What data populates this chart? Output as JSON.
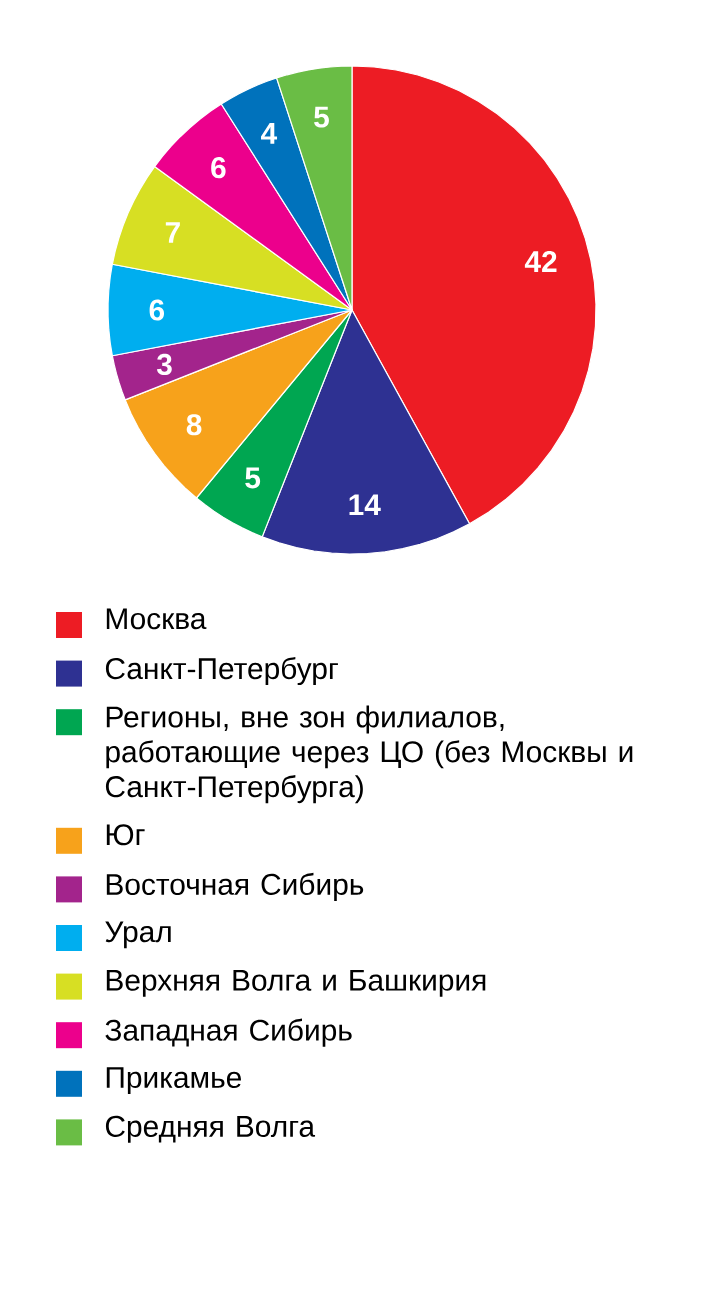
{
  "chart_data": {
    "type": "pie",
    "data_labels": true,
    "legend": "bottom",
    "categories": [
      "Москва",
      "Санкт-Петербург",
      "Регионы, вне зон филиалов, работающие через ЦО (без Москвы и Санкт-Петербурга)",
      "Юг",
      "Восточная Сибирь",
      "Урал",
      "Верхняя Волга и Башкирия",
      "Западная Сибирь",
      "Прикамье",
      "Средняя Волга"
    ],
    "values": [
      42,
      14,
      5,
      8,
      3,
      6,
      7,
      6,
      4,
      5
    ],
    "colors": [
      "#ed1c24",
      "#2e3192",
      "#00a651",
      "#f7a21b",
      "#a3248c",
      "#00aeef",
      "#d7df23",
      "#ec008c",
      "#0072bc",
      "#6abd45"
    ]
  }
}
